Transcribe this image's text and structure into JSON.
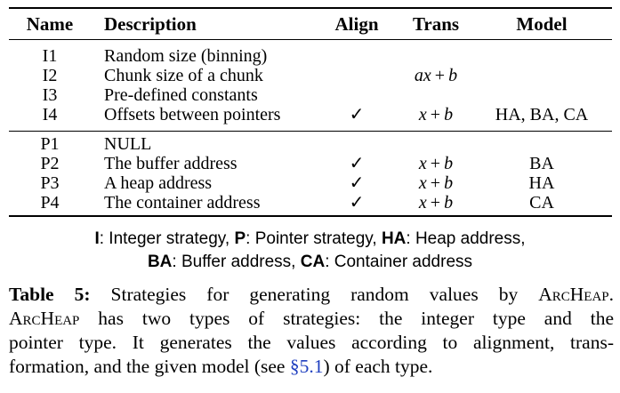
{
  "table": {
    "headers": {
      "name": "Name",
      "description": "Description",
      "align": "Align",
      "trans": "Trans",
      "model": "Model"
    },
    "group_integer": [
      {
        "name": "I1",
        "description": "Random size (binning)",
        "align": "",
        "trans": "",
        "model": ""
      },
      {
        "name": "I2",
        "description": "Chunk size of a chunk",
        "align": "",
        "trans": "ax+b",
        "model": ""
      },
      {
        "name": "I3",
        "description": "Pre-defined constants",
        "align": "",
        "trans": "",
        "model": ""
      },
      {
        "name": "I4",
        "description": "Offsets between pointers",
        "align": "✓",
        "trans": "x+b",
        "model": "HA, BA, CA"
      }
    ],
    "group_pointer": [
      {
        "name": "P1",
        "description": "NULL",
        "align": "",
        "trans": "",
        "model": ""
      },
      {
        "name": "P2",
        "description": "The buffer address",
        "align": "✓",
        "trans": "x+b",
        "model": "BA"
      },
      {
        "name": "P3",
        "description": "A heap address",
        "align": "✓",
        "trans": "x+b",
        "model": "HA"
      },
      {
        "name": "P4",
        "description": "The container address",
        "align": "✓",
        "trans": "x+b",
        "model": "CA"
      }
    ]
  },
  "legend": {
    "line1": [
      {
        "key": "I",
        "text": ": Integer strategy, "
      },
      {
        "key": "P",
        "text": ": Pointer strategy, "
      },
      {
        "key": "HA",
        "text": ": Heap address,"
      }
    ],
    "line2": [
      {
        "key": "BA",
        "text": ": Buffer address, "
      },
      {
        "key": "CA",
        "text": ": Container address"
      }
    ]
  },
  "caption": {
    "label": "Table 5:",
    "line1_pre": " Strategies for generating random values by ",
    "tool": "ArcHeap",
    "line1_post": ".",
    "line2_rest": " has two types of strategies: the integer type and the",
    "line3": "pointer type. It generates the values according to alignment, trans-",
    "line4_pre": "formation, and the given model (see ",
    "ref": "§5.1",
    "line4_post": ") of each type."
  }
}
